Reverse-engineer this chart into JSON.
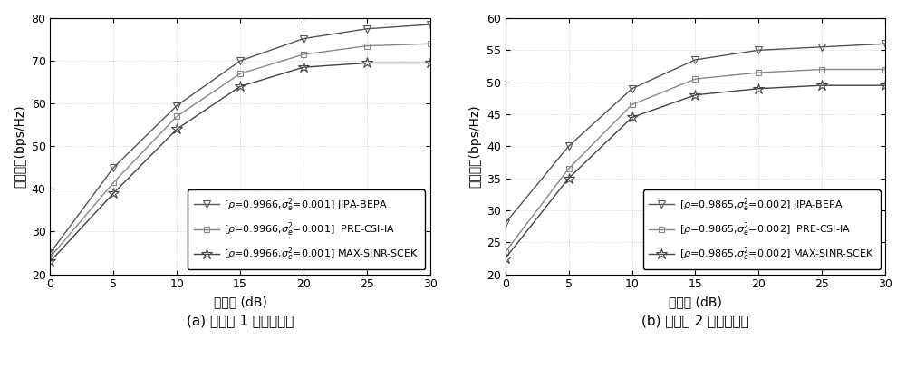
{
  "x": [
    0,
    5,
    10,
    15,
    20,
    25,
    30
  ],
  "left": {
    "jipa_bepa": [
      25.0,
      45.0,
      59.5,
      70.0,
      75.2,
      77.5,
      78.5
    ],
    "pre_csi_ia": [
      24.0,
      41.5,
      57.0,
      67.0,
      71.5,
      73.5,
      74.0
    ],
    "max_sinr_scek": [
      23.0,
      39.0,
      54.0,
      64.0,
      68.5,
      69.5,
      69.5
    ],
    "ylabel": "系统容量(bps/Hz)",
    "xlabel": "信噪比 (dB)",
    "ylim": [
      20,
      80
    ],
    "yticks": [
      20,
      30,
      40,
      50,
      60,
      70,
      80
    ],
    "legend1": "[ρ=0.9966,σ",
    "legend1b": "=0.001] JIPA-BEPA",
    "legend2": "[ρ=0.9966,σ",
    "legend2b": "=0.001]  PRE-CSI-IA",
    "legend3": "[ρ=0.9966,σ",
    "legend3b": "=0.001] MAX-SINR-SCEK",
    "title": "(a) 时延为 1 个符号时间"
  },
  "right": {
    "jipa_bepa": [
      28.0,
      40.0,
      49.0,
      53.5,
      55.0,
      55.5,
      56.0
    ],
    "pre_csi_ia": [
      23.5,
      36.5,
      46.5,
      50.5,
      51.5,
      52.0,
      52.0
    ],
    "max_sinr_scek": [
      22.5,
      35.0,
      44.5,
      48.0,
      49.0,
      49.5,
      49.5
    ],
    "ylabel": "系统容量(bps/Hz)",
    "xlabel": "信噪比 (dB)",
    "ylim": [
      20,
      60
    ],
    "yticks": [
      20,
      25,
      30,
      35,
      40,
      45,
      50,
      55,
      60
    ],
    "legend1": "[ρ=0.9865,σ",
    "legend1b": "=0.002] JIPA-BEPA",
    "legend2": "[ρ=0.9865,σ",
    "legend2b": "=0.002]  PRE-CSI-IA",
    "legend3": "[ρ=0.9865,σ",
    "legend3b": "=0.002] MAX-SINR-SCEK",
    "title": "(b) 时延为 2 个符号时间"
  },
  "color_jipa": "#555555",
  "color_pre": "#888888",
  "color_max": "#444444",
  "marker_jipa": "v",
  "marker_pre": "s",
  "marker_max": "*",
  "linewidth": 1.0,
  "markersize_v": 6,
  "markersize_s": 5,
  "markersize_star": 9
}
